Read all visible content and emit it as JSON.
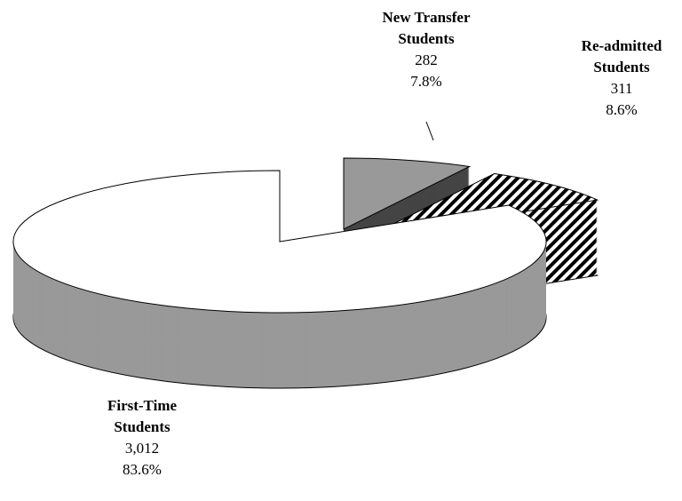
{
  "chart_data": {
    "type": "pie3d",
    "categories": [
      "New Transfer Students",
      "Re-admitted Students",
      "First-Time Students"
    ],
    "values": [
      282,
      311,
      3012
    ],
    "value_labels": [
      "282",
      "311",
      "3,012"
    ],
    "percents": [
      7.8,
      8.6,
      83.6
    ],
    "percent_labels": [
      "7.8%",
      "8.6%",
      "83.6%"
    ],
    "colors": [
      "#999999",
      "hatch",
      "#ffffff"
    ],
    "side_colors": [
      "#444444",
      "hatch",
      "#999999"
    ]
  }
}
